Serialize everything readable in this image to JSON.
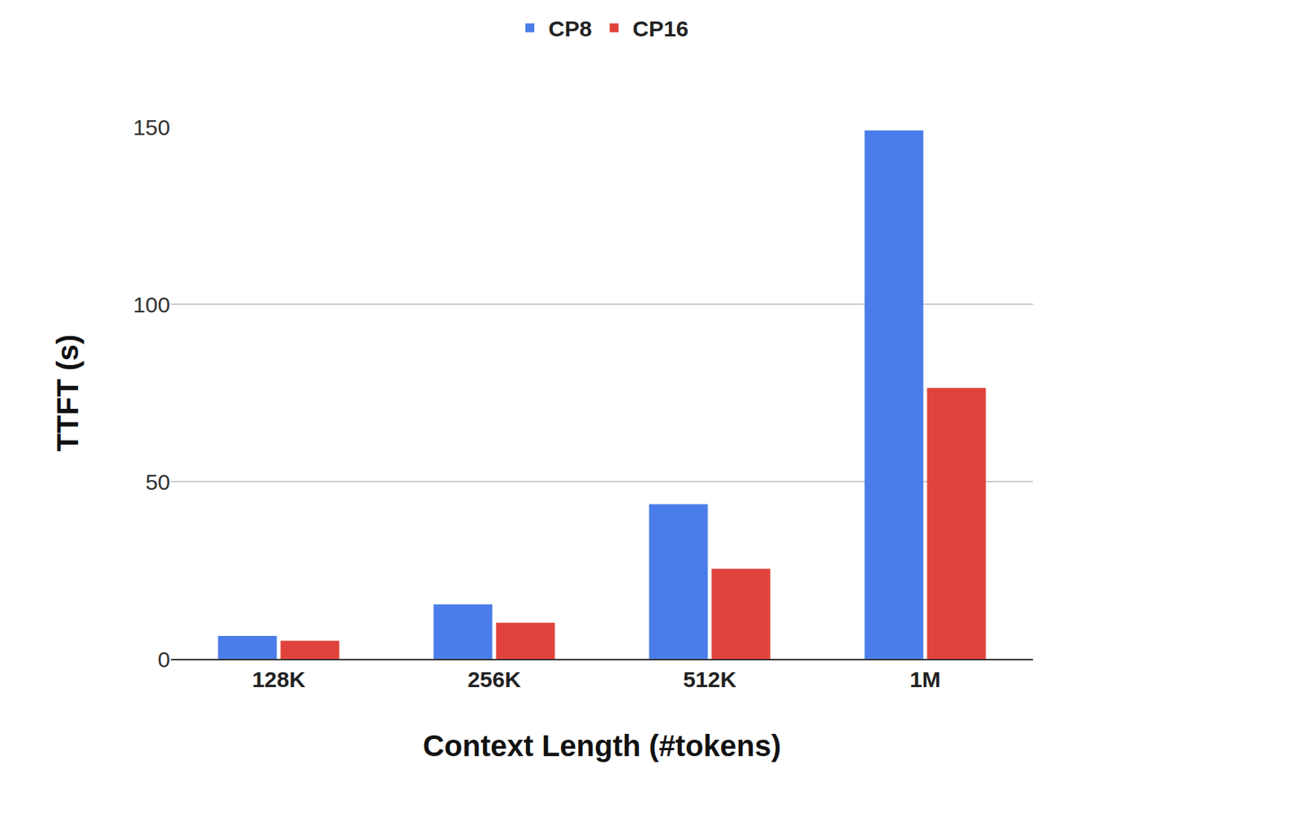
{
  "chart_data": {
    "type": "bar",
    "x_label": "Context Length (#tokens)",
    "y_label": "TTFT (s)",
    "categories": [
      "128K",
      "256K",
      "512K",
      "1M"
    ],
    "series": [
      {
        "name": "CP8",
        "color": "#4a7de9",
        "values": [
          6.5,
          15.4,
          43.6,
          149
        ]
      },
      {
        "name": "CP16",
        "color": "#e0433b",
        "values": [
          5.1,
          10.2,
          25.4,
          76.4
        ]
      }
    ],
    "ylim": [
      0,
      150
    ],
    "yticks": [
      0,
      50,
      100,
      150
    ],
    "grid": true,
    "legend": "top"
  }
}
